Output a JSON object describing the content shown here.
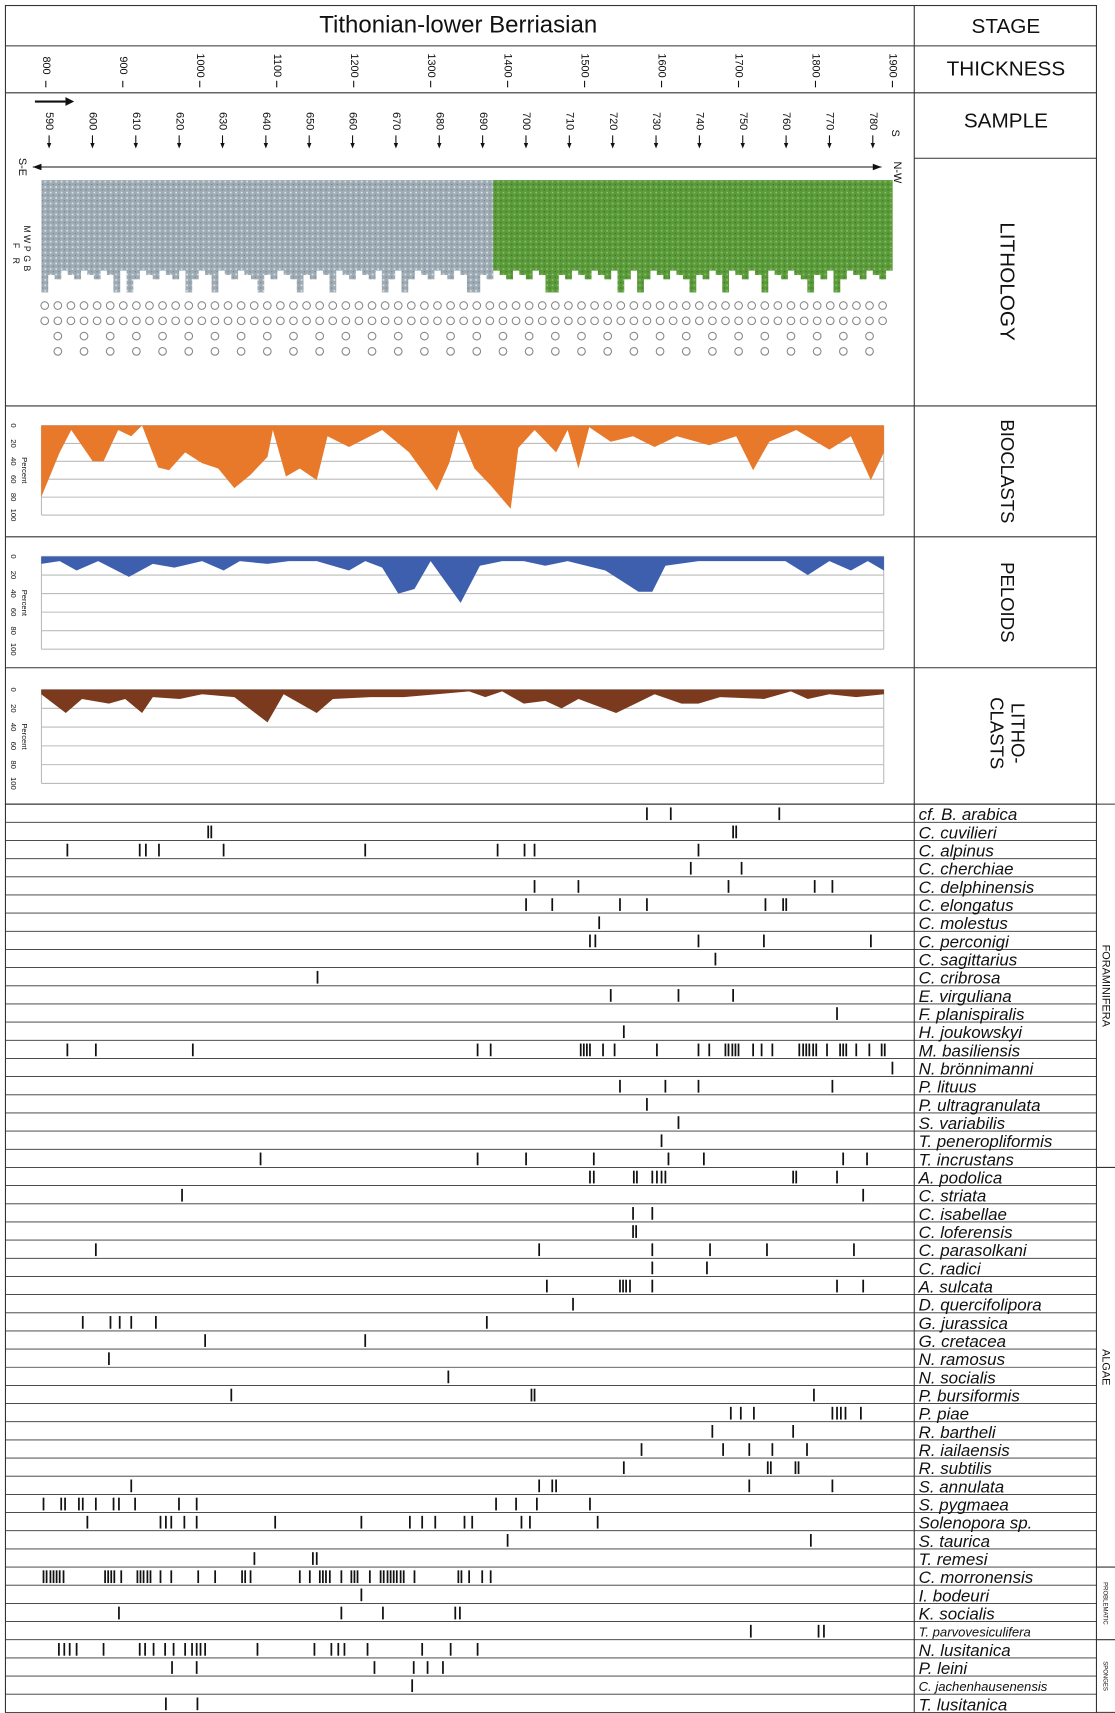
{
  "title": "Tithonian-lower Berriasian",
  "column_labels": {
    "stage": "STAGE",
    "thickness": "THICKNESS",
    "sample": "SAMPLE",
    "lithology": "LITHOLOGY"
  },
  "thickness_axis": {
    "xlim": [
      800,
      1900
    ],
    "xticks": [
      800,
      900,
      1000,
      1100,
      1200,
      1300,
      1400,
      1500,
      1600,
      1700,
      1800,
      1900
    ]
  },
  "sample_axis": {
    "xlim": [
      590,
      780
    ],
    "xticks": [
      590,
      600,
      610,
      620,
      630,
      640,
      650,
      660,
      670,
      680,
      690,
      700,
      710,
      720,
      730,
      740,
      750,
      760,
      770,
      780
    ],
    "end_label": "S",
    "left_label": "S-E",
    "right_label": "N-W"
  },
  "lithology": {
    "texture_labels": [
      "M",
      "W",
      "P",
      "G",
      "B"
    ],
    "grain_labels": [
      "F",
      "R"
    ]
  },
  "chart_data": [
    {
      "type": "area",
      "label_lines": [
        "BIOCLASTS"
      ],
      "color": "#e8782a",
      "ylim": [
        0,
        100
      ],
      "yticks": [
        0,
        20,
        40,
        60,
        80,
        100
      ],
      "ylabel": "Percent",
      "grid": true,
      "x": [
        794,
        818,
        833,
        861,
        875,
        894,
        911,
        925,
        946,
        960,
        981,
        1003,
        1024,
        1045,
        1066,
        1088,
        1095,
        1112,
        1130,
        1152,
        1166,
        1194,
        1237,
        1272,
        1308,
        1324,
        1336,
        1357,
        1378,
        1404,
        1414,
        1435,
        1463,
        1478,
        1492,
        1506,
        1534,
        1563,
        1591,
        1620,
        1662,
        1697,
        1719,
        1740,
        1775,
        1818,
        1846,
        1872,
        1889
      ],
      "values": [
        80,
        30,
        5,
        40,
        40,
        5,
        12,
        0,
        47,
        50,
        30,
        42,
        48,
        70,
        55,
        35,
        5,
        57,
        48,
        61,
        12,
        24,
        5,
        30,
        73,
        42,
        5,
        48,
        67,
        93,
        25,
        5,
        30,
        5,
        48,
        2,
        18,
        12,
        24,
        12,
        22,
        12,
        50,
        18,
        5,
        27,
        12,
        61,
        30
      ]
    },
    {
      "type": "area",
      "label_lines": [
        "PELOIDS"
      ],
      "color": "#3d5fae",
      "ylim": [
        0,
        100
      ],
      "yticks": [
        0,
        20,
        40,
        60,
        80,
        100
      ],
      "ylabel": "Percent",
      "grid": true,
      "x": [
        794,
        818,
        840,
        868,
        908,
        939,
        967,
        1003,
        1031,
        1052,
        1088,
        1116,
        1152,
        1194,
        1215,
        1237,
        1258,
        1279,
        1300,
        1339,
        1364,
        1393,
        1421,
        1449,
        1478,
        1527,
        1570,
        1588,
        1605,
        1648,
        1704,
        1761,
        1790,
        1818,
        1846,
        1868,
        1889
      ],
      "values": [
        8,
        5,
        15,
        5,
        22,
        8,
        12,
        5,
        15,
        5,
        8,
        5,
        5,
        15,
        5,
        12,
        40,
        35,
        5,
        50,
        10,
        5,
        5,
        10,
        5,
        15,
        38,
        38,
        10,
        5,
        5,
        5,
        20,
        5,
        15,
        5,
        15
      ]
    },
    {
      "type": "area",
      "label_lines": [
        "LITHO-",
        "CLASTS"
      ],
      "color": "#7b3a1e",
      "ylim": [
        0,
        100
      ],
      "yticks": [
        0,
        20,
        40,
        60,
        80,
        100
      ],
      "ylabel": "Percent",
      "grid": true,
      "x": [
        794,
        826,
        847,
        882,
        903,
        925,
        939,
        974,
        1003,
        1045,
        1088,
        1109,
        1152,
        1173,
        1222,
        1265,
        1308,
        1350,
        1371,
        1393,
        1421,
        1449,
        1470,
        1492,
        1541,
        1591,
        1626,
        1648,
        1676,
        1733,
        1768,
        1790,
        1818,
        1853,
        1889
      ],
      "values": [
        5,
        25,
        10,
        15,
        10,
        25,
        8,
        10,
        5,
        8,
        35,
        5,
        25,
        10,
        8,
        8,
        5,
        2,
        8,
        2,
        15,
        12,
        20,
        10,
        25,
        5,
        15,
        15,
        8,
        10,
        2,
        10,
        5,
        8,
        5
      ]
    }
  ],
  "range_chart": {
    "groups": [
      {
        "name": "FORAMINIFERA",
        "taxa": [
          {
            "name": "cf. B. arabica",
            "occurrences": [
              1581,
              1612,
              1753
            ]
          },
          {
            "name": "C. cuvilieri",
            "occurrences": [
              1011,
              1015,
              1693,
              1697
            ]
          },
          {
            "name": "C. alpinus",
            "occurrences": [
              828,
              922,
              930,
              947,
              1031,
              1215,
              1387,
              1422,
              1435,
              1648
            ]
          },
          {
            "name": "C. cherchiae",
            "occurrences": [
              1638,
              1704
            ]
          },
          {
            "name": "C. delphinensis",
            "occurrences": [
              1435,
              1492,
              1687,
              1799,
              1822
            ]
          },
          {
            "name": "C. elongatus",
            "occurrences": [
              1424,
              1458,
              1546,
              1581,
              1735,
              1758,
              1762
            ]
          },
          {
            "name": "C. molestus",
            "occurrences": [
              1519
            ]
          },
          {
            "name": "C. perconigi",
            "occurrences": [
              1507,
              1514,
              1648,
              1733,
              1872
            ]
          },
          {
            "name": "C. sagittarius",
            "occurrences": [
              1670
            ]
          },
          {
            "name": "C. cribrosa",
            "occurrences": [
              1153
            ]
          },
          {
            "name": "E. virguliana",
            "occurrences": [
              1534,
              1622,
              1693
            ]
          },
          {
            "name": "F. planispiralis",
            "occurrences": [
              1828
            ]
          },
          {
            "name": "H. joukowskyi",
            "occurrences": [
              1551
            ]
          },
          {
            "name": "M. basiliensis",
            "occurrences": [
              828,
              865,
              991,
              1361,
              1378,
              1495,
              1499,
              1503,
              1507,
              1524,
              1539,
              1594,
              1648,
              1662,
              1683,
              1687,
              1692,
              1696,
              1700,
              1719,
              1730,
              1744,
              1779,
              1784,
              1788,
              1792,
              1797,
              1801,
              1815,
              1832,
              1836,
              1840,
              1853,
              1870,
              1886,
              1890
            ]
          },
          {
            "name": "N. brönnimanni",
            "occurrences": [
              1900
            ]
          },
          {
            "name": "P. lituus",
            "occurrences": [
              1546,
              1605,
              1648,
              1822
            ]
          },
          {
            "name": "P. ultragranulata",
            "occurrences": [
              1581
            ]
          },
          {
            "name": "S. variabilis",
            "occurrences": [
              1622
            ]
          },
          {
            "name": "T. peneropliformis",
            "occurrences": [
              1600
            ]
          },
          {
            "name": "T. incrustans",
            "occurrences": [
              1079,
              1361,
              1424,
              1512,
              1609,
              1655,
              1836,
              1867
            ]
          }
        ]
      },
      {
        "name": "ALGAE",
        "taxa": [
          {
            "name": "A. podolica",
            "occurrences": [
              1507,
              1512,
              1564,
              1568,
              1588,
              1594,
              1600,
              1605,
              1771,
              1775,
              1828
            ]
          },
          {
            "name": "C. striata",
            "occurrences": [
              977,
              1862
            ]
          },
          {
            "name": "C. isabellae",
            "occurrences": [
              1563,
              1588
            ]
          },
          {
            "name": "C. loferensis",
            "occurrences": [
              1563,
              1567
            ]
          },
          {
            "name": "C. parasolkani",
            "occurrences": [
              865,
              1441,
              1588,
              1663,
              1737,
              1850
            ]
          },
          {
            "name": "C. radici",
            "occurrences": [
              1588,
              1659
            ]
          },
          {
            "name": "A. sulcata",
            "occurrences": [
              1451,
              1546,
              1550,
              1554,
              1559,
              1588,
              1828,
              1862
            ]
          },
          {
            "name": "D. quercifolipora",
            "occurrences": [
              1485
            ]
          },
          {
            "name": "G. jurassica",
            "occurrences": [
              848,
              884,
              896,
              911,
              943,
              1373
            ]
          },
          {
            "name": "G. cretacea",
            "occurrences": [
              1007,
              1215
            ]
          },
          {
            "name": "N. ramosus",
            "occurrences": [
              882
            ]
          },
          {
            "name": "N. socialis",
            "occurrences": [
              1323
            ]
          },
          {
            "name": "P. bursiformis",
            "occurrences": [
              1041,
              1431,
              1435,
              1798
            ]
          },
          {
            "name": "P. piae",
            "occurrences": [
              1690,
              1703,
              1720,
              1822,
              1828,
              1833,
              1839,
              1859
            ]
          },
          {
            "name": "R. bartheli",
            "occurrences": [
              1666,
              1771
            ]
          },
          {
            "name": "R. iailaensis",
            "occurrences": [
              1574,
              1680,
              1714,
              1744,
              1789
            ]
          },
          {
            "name": "R. subtilis",
            "occurrences": [
              1551,
              1738,
              1742,
              1774,
              1778
            ]
          },
          {
            "name": "S. annulata",
            "occurrences": [
              911,
              1441,
              1458,
              1463,
              1714,
              1822
            ]
          },
          {
            "name": "S. pygmaea",
            "occurrences": [
              797,
              820,
              825,
              843,
              848,
              865,
              888,
              895,
              916,
              973,
              996,
              1385,
              1411,
              1438,
              1507
            ]
          },
          {
            "name": "Solenopora sp.",
            "occurrences": [
              854,
              949,
              956,
              963,
              980,
              996,
              1098,
              1210,
              1273,
              1289,
              1306,
              1344,
              1354,
              1418,
              1429,
              1517
            ]
          },
          {
            "name": "S. taurica",
            "occurrences": [
              1400,
              1794
            ]
          },
          {
            "name": "T. remesi",
            "occurrences": [
              1071,
              1147,
              1152
            ]
          }
        ]
      },
      {
        "name": "PROBLEMATIC",
        "taxa": [
          {
            "name": "C. morronensis",
            "occurrences": [
              797,
              801,
              806,
              810,
              814,
              818,
              823,
              877,
              881,
              885,
              889,
              898,
              919,
              923,
              927,
              932,
              936,
              949,
              963,
              998,
              1020,
              1055,
              1059,
              1066,
              1130,
              1143,
              1156,
              1160,
              1164,
              1169,
              1184,
              1197,
              1201,
              1205,
              1221,
              1235,
              1239,
              1244,
              1248,
              1252,
              1256,
              1261,
              1265,
              1279,
              1336,
              1340,
              1350,
              1367,
              1378
            ]
          },
          {
            "name": "I. bodeuri",
            "occurrences": [
              1210
            ]
          },
          {
            "name": "K. socialis",
            "occurrences": [
              895,
              1184,
              1238,
              1332,
              1338
            ]
          },
          {
            "name": "T. parvovesiculifera",
            "occurrences": [
              1716,
              1804,
              1811
            ]
          }
        ]
      },
      {
        "name": "SPONGES",
        "taxa": [
          {
            "name": "N. lusitanica",
            "occurrences": [
              817,
              824,
              831,
              840,
              875,
              922,
              929,
              940,
              955,
              966,
              981,
              990,
              996,
              1001,
              1007,
              1075,
              1149,
              1171,
              1180,
              1188,
              1218,
              1289,
              1326,
              1361
            ]
          },
          {
            "name": "P. leini",
            "occurrences": [
              964,
              996,
              1227,
              1278,
              1296,
              1316
            ]
          },
          {
            "name": "C. jachenhausenensis",
            "occurrences": [
              1276
            ]
          },
          {
            "name": "T. lusitanica",
            "occurrences": [
              956,
              997
            ]
          }
        ]
      }
    ]
  }
}
